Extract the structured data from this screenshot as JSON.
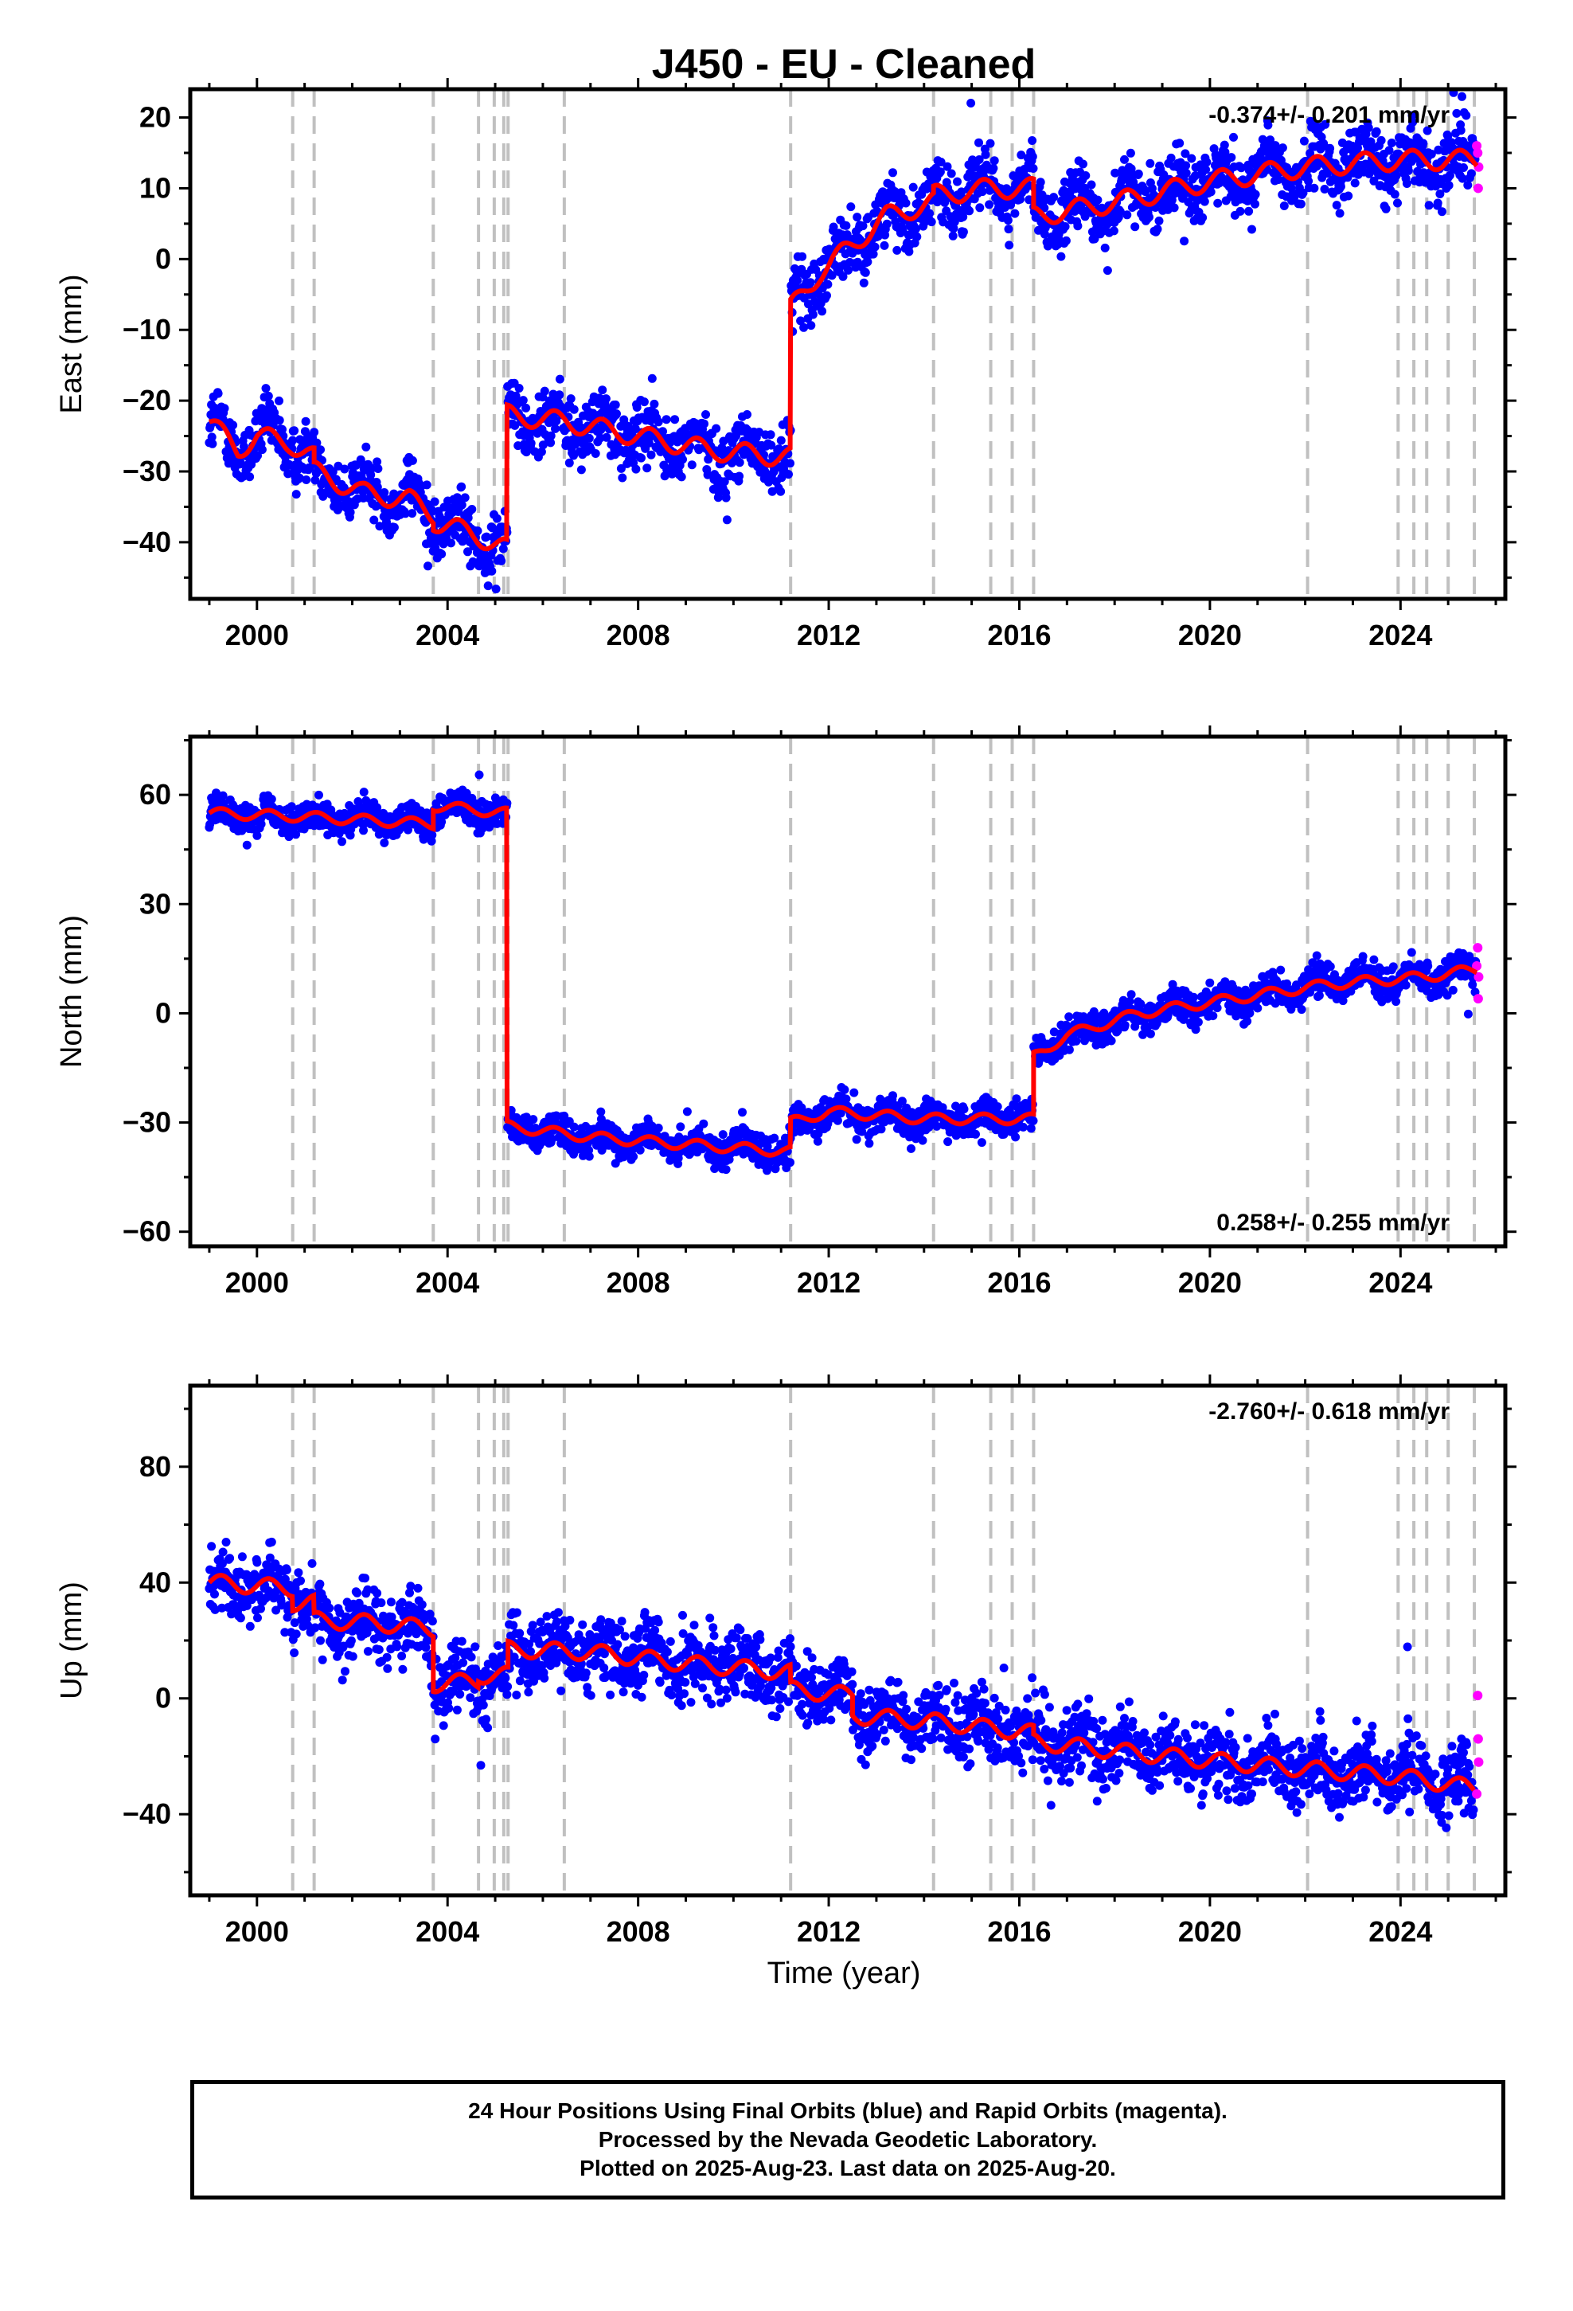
{
  "chart_data": {
    "title": "J450  - EU - Cleaned",
    "xlabel": "Time (year)",
    "xlim": [
      1998.6,
      2026.2
    ],
    "x_ticks": [
      "2000",
      "2004",
      "2008",
      "2012",
      "2016",
      "2020",
      "2024"
    ],
    "legend": {
      "final_orbits_color": "#0000ff",
      "rapid_orbits_color": "#ff00ff",
      "model_color": "#ff0000"
    },
    "equipment_change_dates": [
      2000.75,
      2001.2,
      2003.7,
      2004.65,
      2004.98,
      2005.18,
      2005.27,
      2006.45,
      2011.2,
      2014.2,
      2015.4,
      2015.85,
      2016.3,
      2022.05,
      2023.95,
      2024.28,
      2024.55,
      2025.0,
      2025.55
    ],
    "panels": [
      {
        "type": "scatter",
        "ylabel": "East (mm)",
        "ylim": [
          -48,
          24
        ],
        "y_ticks": [
          20,
          10,
          0,
          -10,
          -20,
          -30,
          -40
        ],
        "rate_label": "-0.374+/- 0.201 mm/yr",
        "rate_position": "top-right",
        "model_segments": [
          {
            "x": [
              1999.0,
              1999.6,
              2000.0,
              2000.7,
              2001.2
            ],
            "y": [
              -23,
              -27,
              -25,
              -26,
              -28
            ]
          },
          {
            "x": [
              2001.2,
              2002.2,
              2003.2,
              2003.7
            ],
            "y": [
              -30,
              -33,
              -34,
              -36
            ]
          },
          {
            "x": [
              2003.7,
              2004.6,
              2005.25
            ],
            "y": [
              -37,
              -39,
              -41
            ]
          },
          {
            "x": [
              2005.25,
              2006.5,
              2008.0,
              2009.5,
              2011.2
            ],
            "y": [
              -22,
              -23,
              -25,
              -27,
              -28
            ]
          },
          {
            "x": [
              2011.2,
              2011.8,
              2012.5,
              2013.2,
              2014.2
            ],
            "y": [
              -7,
              -2,
              2,
              6,
              8
            ]
          },
          {
            "x": [
              2014.2,
              2015.4,
              2016.3
            ],
            "y": [
              9,
              10,
              10
            ]
          },
          {
            "x": [
              2016.3,
              2018.0,
              2020.0,
              2022.0,
              2024.0,
              2025.6
            ],
            "y": [
              6,
              8,
              11,
              13,
              14,
              14
            ]
          }
        ],
        "rapid_points": [
          {
            "x": 2025.62,
            "y": 15
          },
          {
            "x": 2025.63,
            "y": 10
          },
          {
            "x": 2025.64,
            "y": 13
          },
          {
            "x": 2025.6,
            "y": 16
          }
        ]
      },
      {
        "type": "scatter",
        "ylabel": "North (mm)",
        "ylim": [
          -64,
          76
        ],
        "y_ticks": [
          60,
          30,
          0,
          -30,
          -60
        ],
        "rate_label": "0.258+/- 0.255 mm/yr",
        "rate_position": "bottom-right",
        "model_segments": [
          {
            "x": [
              1999.0,
              2001.0,
              2003.7
            ],
            "y": [
              55,
              54,
              52
            ]
          },
          {
            "x": [
              2003.7,
              2005.25
            ],
            "y": [
              57,
              55
            ]
          },
          {
            "x": [
              2005.25,
              2007.0,
              2009.0,
              2011.2
            ],
            "y": [
              -31,
              -34,
              -36,
              -38
            ]
          },
          {
            "x": [
              2011.2,
              2012.0,
              2014.0,
              2016.3
            ],
            "y": [
              -30,
              -27,
              -29,
              -29
            ]
          },
          {
            "x": [
              2016.3,
              2017.0,
              2018.5,
              2020.5,
              2022.5,
              2024.5,
              2025.6
            ],
            "y": [
              -12,
              -6,
              0,
              4,
              8,
              10,
              12
            ]
          }
        ],
        "rapid_points": [
          {
            "x": 2025.62,
            "y": 18
          },
          {
            "x": 2025.63,
            "y": 4
          },
          {
            "x": 2025.64,
            "y": 10
          },
          {
            "x": 2025.6,
            "y": 13
          }
        ]
      },
      {
        "type": "scatter",
        "ylabel": "Up (mm)",
        "ylim": [
          -68,
          108
        ],
        "y_ticks": [
          80,
          40,
          0,
          -40
        ],
        "rate_label": "-2.760+/- 0.618 mm/yr",
        "rate_position": "top-right",
        "model_segments": [
          {
            "x": [
              1999.0,
              2000.75
            ],
            "y": [
              40,
              38
            ]
          },
          {
            "x": [
              2000.75,
              2001.2
            ],
            "y": [
              33,
              33
            ]
          },
          {
            "x": [
              2001.2,
              2002.5,
              2003.7
            ],
            "y": [
              27,
              26,
              24
            ]
          },
          {
            "x": [
              2003.7,
              2004.65
            ],
            "y": [
              5,
              6
            ]
          },
          {
            "x": [
              2004.65,
              2005.27
            ],
            "y": [
              8,
              8
            ]
          },
          {
            "x": [
              2005.27,
              2007.0,
              2009.0,
              2011.2
            ],
            "y": [
              17,
              16,
              12,
              9
            ]
          },
          {
            "x": [
              2011.2,
              2012.5
            ],
            "y": [
              3,
              1
            ]
          },
          {
            "x": [
              2012.5,
              2014.2,
              2016.3
            ],
            "y": [
              -6,
              -8,
              -12
            ]
          },
          {
            "x": [
              2016.3,
              2018.5,
              2021.0,
              2024.0,
              2025.55
            ],
            "y": [
              -15,
              -19,
              -23,
              -27,
              -31
            ]
          }
        ],
        "rapid_points": [
          {
            "x": 2025.62,
            "y": 1
          },
          {
            "x": 2025.63,
            "y": -14
          },
          {
            "x": 2025.64,
            "y": -22
          },
          {
            "x": 2025.6,
            "y": -33
          }
        ]
      }
    ]
  },
  "caption": {
    "line1": "24 Hour Positions Using Final Orbits (blue) and Rapid Orbits (magenta).",
    "line2": "Processed by the Nevada Geodetic Laboratory.",
    "line3": "Plotted on 2025-Aug-23. Last data on 2025-Aug-20."
  }
}
